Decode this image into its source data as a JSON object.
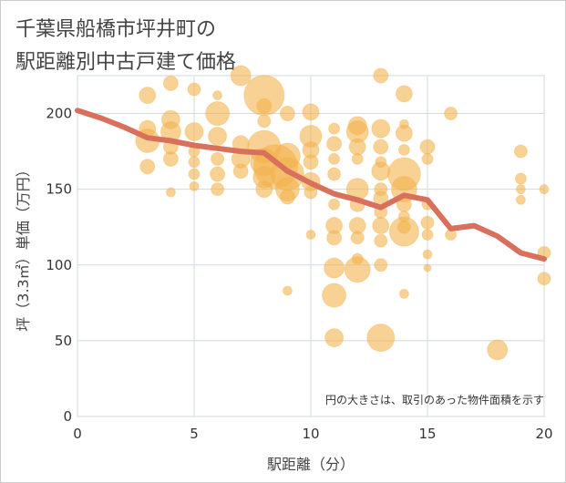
{
  "title_line1": "千葉県船橋市坪井町の",
  "title_line2": "駅距離別中古戸建て価格",
  "chart_data": {
    "type": "scatter",
    "xlabel": "駅距離（分）",
    "ylabel": "坪（3.3㎡）単価（万円）",
    "xlim": [
      0,
      20
    ],
    "ylim": [
      0,
      225
    ],
    "x_ticks": [
      "0",
      "5",
      "10",
      "15",
      "20"
    ],
    "y_ticks": [
      "0",
      "50",
      "100",
      "150",
      "200"
    ],
    "x_tick_values": [
      0,
      5,
      10,
      15,
      20
    ],
    "y_tick_values": [
      0,
      50,
      100,
      150,
      200
    ],
    "grid": true,
    "note": "円の大きさは、取引のあった物件面積を示す",
    "bubble_color": "#f3b24d",
    "line_color": "#d9705b",
    "trend_line": {
      "x": [
        0,
        1,
        2,
        3,
        4,
        5,
        6,
        7,
        8,
        9,
        10,
        11,
        12,
        13,
        14,
        15,
        16,
        17,
        18,
        19,
        20
      ],
      "y": [
        202,
        197,
        191,
        184,
        182,
        179,
        177,
        175,
        174,
        162,
        154,
        147,
        143,
        138,
        146,
        143,
        124,
        126,
        119,
        108,
        104
      ]
    },
    "points": [
      {
        "x": 3,
        "y": 212,
        "s": 9
      },
      {
        "x": 4,
        "y": 220,
        "s": 8
      },
      {
        "x": 5,
        "y": 216,
        "s": 7
      },
      {
        "x": 6,
        "y": 200,
        "s": 13
      },
      {
        "x": 6,
        "y": 212,
        "s": 5
      },
      {
        "x": 7,
        "y": 225,
        "s": 11
      },
      {
        "x": 8,
        "y": 212,
        "s": 22
      },
      {
        "x": 8,
        "y": 205,
        "s": 8
      },
      {
        "x": 8,
        "y": 195,
        "s": 7
      },
      {
        "x": 9,
        "y": 200,
        "s": 8
      },
      {
        "x": 10,
        "y": 201,
        "s": 9
      },
      {
        "x": 3,
        "y": 190,
        "s": 9
      },
      {
        "x": 3,
        "y": 182,
        "s": 13
      },
      {
        "x": 3,
        "y": 165,
        "s": 8
      },
      {
        "x": 4,
        "y": 196,
        "s": 10
      },
      {
        "x": 4,
        "y": 188,
        "s": 11
      },
      {
        "x": 4,
        "y": 178,
        "s": 8
      },
      {
        "x": 4,
        "y": 170,
        "s": 8
      },
      {
        "x": 4,
        "y": 148,
        "s": 5
      },
      {
        "x": 5,
        "y": 188,
        "s": 10
      },
      {
        "x": 5,
        "y": 175,
        "s": 6
      },
      {
        "x": 5,
        "y": 168,
        "s": 6
      },
      {
        "x": 5,
        "y": 160,
        "s": 6
      },
      {
        "x": 5,
        "y": 152,
        "s": 5
      },
      {
        "x": 6,
        "y": 185,
        "s": 10
      },
      {
        "x": 6,
        "y": 170,
        "s": 7
      },
      {
        "x": 6,
        "y": 160,
        "s": 8
      },
      {
        "x": 6,
        "y": 150,
        "s": 7
      },
      {
        "x": 7,
        "y": 180,
        "s": 9
      },
      {
        "x": 7,
        "y": 170,
        "s": 10
      },
      {
        "x": 7,
        "y": 162,
        "s": 8
      },
      {
        "x": 8,
        "y": 178,
        "s": 18
      },
      {
        "x": 8,
        "y": 168,
        "s": 15
      },
      {
        "x": 8,
        "y": 158,
        "s": 12
      },
      {
        "x": 8,
        "y": 150,
        "s": 9
      },
      {
        "x": 8.5,
        "y": 165,
        "s": 24
      },
      {
        "x": 9,
        "y": 172,
        "s": 14
      },
      {
        "x": 9,
        "y": 160,
        "s": 18
      },
      {
        "x": 9,
        "y": 150,
        "s": 13
      },
      {
        "x": 9,
        "y": 145,
        "s": 8
      },
      {
        "x": 9,
        "y": 83,
        "s": 5
      },
      {
        "x": 10,
        "y": 185,
        "s": 12
      },
      {
        "x": 10,
        "y": 176,
        "s": 9
      },
      {
        "x": 10,
        "y": 168,
        "s": 8
      },
      {
        "x": 10,
        "y": 155,
        "s": 10
      },
      {
        "x": 10,
        "y": 148,
        "s": 7
      },
      {
        "x": 10,
        "y": 120,
        "s": 5
      },
      {
        "x": 11,
        "y": 190,
        "s": 6
      },
      {
        "x": 11,
        "y": 180,
        "s": 8
      },
      {
        "x": 11,
        "y": 170,
        "s": 6
      },
      {
        "x": 11,
        "y": 160,
        "s": 7
      },
      {
        "x": 11,
        "y": 140,
        "s": 6
      },
      {
        "x": 11,
        "y": 126,
        "s": 9
      },
      {
        "x": 11,
        "y": 118,
        "s": 8
      },
      {
        "x": 11,
        "y": 98,
        "s": 11
      },
      {
        "x": 11,
        "y": 80,
        "s": 13
      },
      {
        "x": 11,
        "y": 52,
        "s": 10
      },
      {
        "x": 12,
        "y": 192,
        "s": 10
      },
      {
        "x": 12,
        "y": 188,
        "s": 12
      },
      {
        "x": 12,
        "y": 178,
        "s": 9
      },
      {
        "x": 12,
        "y": 170,
        "s": 6
      },
      {
        "x": 12,
        "y": 150,
        "s": 12
      },
      {
        "x": 12,
        "y": 140,
        "s": 8
      },
      {
        "x": 12,
        "y": 126,
        "s": 9
      },
      {
        "x": 12,
        "y": 118,
        "s": 7
      },
      {
        "x": 12,
        "y": 97,
        "s": 14
      },
      {
        "x": 12,
        "y": 104,
        "s": 6
      },
      {
        "x": 13,
        "y": 225,
        "s": 8
      },
      {
        "x": 13,
        "y": 190,
        "s": 10
      },
      {
        "x": 13,
        "y": 178,
        "s": 8
      },
      {
        "x": 13,
        "y": 168,
        "s": 6
      },
      {
        "x": 13,
        "y": 162,
        "s": 10
      },
      {
        "x": 13,
        "y": 150,
        "s": 7
      },
      {
        "x": 13,
        "y": 144,
        "s": 8
      },
      {
        "x": 13,
        "y": 135,
        "s": 7
      },
      {
        "x": 13,
        "y": 126,
        "s": 9
      },
      {
        "x": 13,
        "y": 116,
        "s": 7
      },
      {
        "x": 13,
        "y": 100,
        "s": 7
      },
      {
        "x": 13,
        "y": 52,
        "s": 15
      },
      {
        "x": 14,
        "y": 213,
        "s": 9
      },
      {
        "x": 14,
        "y": 193,
        "s": 5
      },
      {
        "x": 14,
        "y": 187,
        "s": 9
      },
      {
        "x": 14,
        "y": 176,
        "s": 6
      },
      {
        "x": 14,
        "y": 160,
        "s": 18
      },
      {
        "x": 14,
        "y": 150,
        "s": 14
      },
      {
        "x": 14,
        "y": 140,
        "s": 8
      },
      {
        "x": 14,
        "y": 132,
        "s": 6
      },
      {
        "x": 14,
        "y": 125,
        "s": 7
      },
      {
        "x": 14,
        "y": 122,
        "s": 16
      },
      {
        "x": 14,
        "y": 81,
        "s": 5
      },
      {
        "x": 15,
        "y": 178,
        "s": 8
      },
      {
        "x": 15,
        "y": 170,
        "s": 6
      },
      {
        "x": 15,
        "y": 140,
        "s": 6
      },
      {
        "x": 15,
        "y": 128,
        "s": 7
      },
      {
        "x": 15,
        "y": 120,
        "s": 6
      },
      {
        "x": 15,
        "y": 107,
        "s": 5
      },
      {
        "x": 15,
        "y": 98,
        "s": 4
      },
      {
        "x": 16,
        "y": 200,
        "s": 7
      },
      {
        "x": 16,
        "y": 120,
        "s": 6
      },
      {
        "x": 18,
        "y": 44,
        "s": 11
      },
      {
        "x": 19,
        "y": 175,
        "s": 7
      },
      {
        "x": 19,
        "y": 157,
        "s": 6
      },
      {
        "x": 19,
        "y": 150,
        "s": 5
      },
      {
        "x": 19,
        "y": 143,
        "s": 5
      },
      {
        "x": 20,
        "y": 150,
        "s": 5
      },
      {
        "x": 20,
        "y": 108,
        "s": 7
      },
      {
        "x": 20,
        "y": 91,
        "s": 7
      }
    ]
  }
}
